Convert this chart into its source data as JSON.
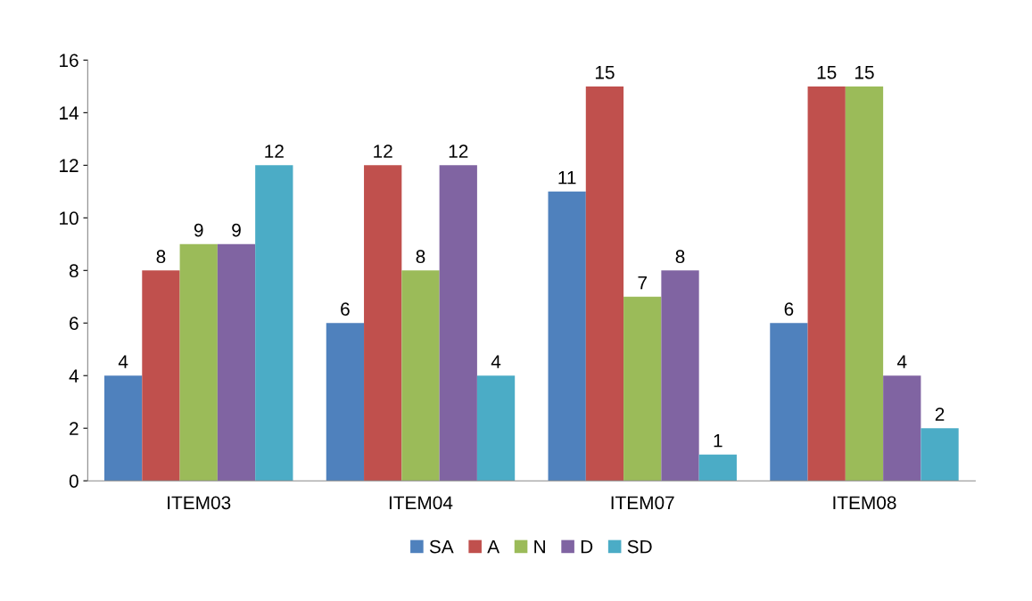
{
  "chart_data": {
    "type": "bar",
    "categories": [
      "ITEM03",
      "ITEM04",
      "ITEM07",
      "ITEM08"
    ],
    "series": [
      {
        "name": "SA",
        "color": "#4f81bd",
        "values": [
          4,
          6,
          11,
          6
        ]
      },
      {
        "name": "A",
        "color": "#c0504d",
        "values": [
          8,
          12,
          15,
          15
        ]
      },
      {
        "name": "N",
        "color": "#9bbb59",
        "values": [
          9,
          8,
          7,
          15
        ]
      },
      {
        "name": "D",
        "color": "#8064a2",
        "values": [
          9,
          12,
          8,
          4
        ]
      },
      {
        "name": "SD",
        "color": "#4bacc6",
        "values": [
          12,
          4,
          1,
          2
        ]
      }
    ],
    "ylim": [
      0,
      16
    ],
    "yticks": [
      0,
      2,
      4,
      6,
      8,
      10,
      12,
      14,
      16
    ],
    "grid": false,
    "legend": "bottom",
    "data_labels": true
  }
}
